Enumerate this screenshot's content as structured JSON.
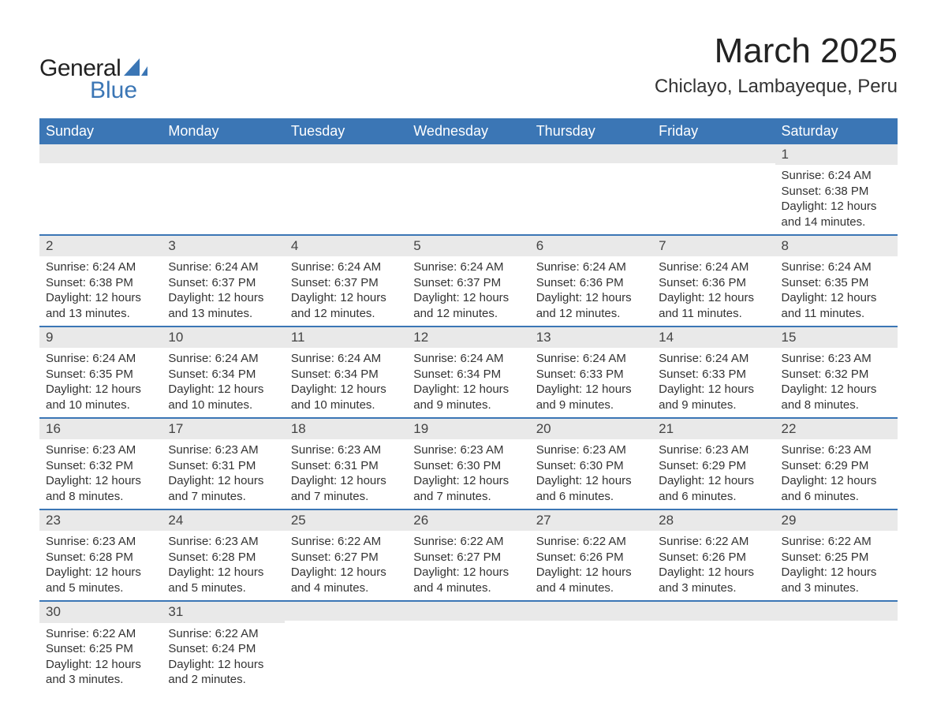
{
  "logo": {
    "text_general": "General",
    "text_blue": "Blue"
  },
  "header": {
    "title": "March 2025",
    "subtitle": "Chiclayo, Lambayeque, Peru"
  },
  "colors": {
    "header_blue": "#3b76b5",
    "divider_blue": "#3b76b5",
    "day_header_bg": "#e9e9e9",
    "text": "#333333",
    "background": "#ffffff"
  },
  "calendar": {
    "type": "table",
    "columns": [
      "Sunday",
      "Monday",
      "Tuesday",
      "Wednesday",
      "Thursday",
      "Friday",
      "Saturday"
    ],
    "weeks": [
      [
        {
          "empty": true
        },
        {
          "empty": true
        },
        {
          "empty": true
        },
        {
          "empty": true
        },
        {
          "empty": true
        },
        {
          "empty": true
        },
        {
          "day": "1",
          "sunrise": "Sunrise: 6:24 AM",
          "sunset": "Sunset: 6:38 PM",
          "daylight": "Daylight: 12 hours and 14 minutes."
        }
      ],
      [
        {
          "day": "2",
          "sunrise": "Sunrise: 6:24 AM",
          "sunset": "Sunset: 6:38 PM",
          "daylight": "Daylight: 12 hours and 13 minutes."
        },
        {
          "day": "3",
          "sunrise": "Sunrise: 6:24 AM",
          "sunset": "Sunset: 6:37 PM",
          "daylight": "Daylight: 12 hours and 13 minutes."
        },
        {
          "day": "4",
          "sunrise": "Sunrise: 6:24 AM",
          "sunset": "Sunset: 6:37 PM",
          "daylight": "Daylight: 12 hours and 12 minutes."
        },
        {
          "day": "5",
          "sunrise": "Sunrise: 6:24 AM",
          "sunset": "Sunset: 6:37 PM",
          "daylight": "Daylight: 12 hours and 12 minutes."
        },
        {
          "day": "6",
          "sunrise": "Sunrise: 6:24 AM",
          "sunset": "Sunset: 6:36 PM",
          "daylight": "Daylight: 12 hours and 12 minutes."
        },
        {
          "day": "7",
          "sunrise": "Sunrise: 6:24 AM",
          "sunset": "Sunset: 6:36 PM",
          "daylight": "Daylight: 12 hours and 11 minutes."
        },
        {
          "day": "8",
          "sunrise": "Sunrise: 6:24 AM",
          "sunset": "Sunset: 6:35 PM",
          "daylight": "Daylight: 12 hours and 11 minutes."
        }
      ],
      [
        {
          "day": "9",
          "sunrise": "Sunrise: 6:24 AM",
          "sunset": "Sunset: 6:35 PM",
          "daylight": "Daylight: 12 hours and 10 minutes."
        },
        {
          "day": "10",
          "sunrise": "Sunrise: 6:24 AM",
          "sunset": "Sunset: 6:34 PM",
          "daylight": "Daylight: 12 hours and 10 minutes."
        },
        {
          "day": "11",
          "sunrise": "Sunrise: 6:24 AM",
          "sunset": "Sunset: 6:34 PM",
          "daylight": "Daylight: 12 hours and 10 minutes."
        },
        {
          "day": "12",
          "sunrise": "Sunrise: 6:24 AM",
          "sunset": "Sunset: 6:34 PM",
          "daylight": "Daylight: 12 hours and 9 minutes."
        },
        {
          "day": "13",
          "sunrise": "Sunrise: 6:24 AM",
          "sunset": "Sunset: 6:33 PM",
          "daylight": "Daylight: 12 hours and 9 minutes."
        },
        {
          "day": "14",
          "sunrise": "Sunrise: 6:24 AM",
          "sunset": "Sunset: 6:33 PM",
          "daylight": "Daylight: 12 hours and 9 minutes."
        },
        {
          "day": "15",
          "sunrise": "Sunrise: 6:23 AM",
          "sunset": "Sunset: 6:32 PM",
          "daylight": "Daylight: 12 hours and 8 minutes."
        }
      ],
      [
        {
          "day": "16",
          "sunrise": "Sunrise: 6:23 AM",
          "sunset": "Sunset: 6:32 PM",
          "daylight": "Daylight: 12 hours and 8 minutes."
        },
        {
          "day": "17",
          "sunrise": "Sunrise: 6:23 AM",
          "sunset": "Sunset: 6:31 PM",
          "daylight": "Daylight: 12 hours and 7 minutes."
        },
        {
          "day": "18",
          "sunrise": "Sunrise: 6:23 AM",
          "sunset": "Sunset: 6:31 PM",
          "daylight": "Daylight: 12 hours and 7 minutes."
        },
        {
          "day": "19",
          "sunrise": "Sunrise: 6:23 AM",
          "sunset": "Sunset: 6:30 PM",
          "daylight": "Daylight: 12 hours and 7 minutes."
        },
        {
          "day": "20",
          "sunrise": "Sunrise: 6:23 AM",
          "sunset": "Sunset: 6:30 PM",
          "daylight": "Daylight: 12 hours and 6 minutes."
        },
        {
          "day": "21",
          "sunrise": "Sunrise: 6:23 AM",
          "sunset": "Sunset: 6:29 PM",
          "daylight": "Daylight: 12 hours and 6 minutes."
        },
        {
          "day": "22",
          "sunrise": "Sunrise: 6:23 AM",
          "sunset": "Sunset: 6:29 PM",
          "daylight": "Daylight: 12 hours and 6 minutes."
        }
      ],
      [
        {
          "day": "23",
          "sunrise": "Sunrise: 6:23 AM",
          "sunset": "Sunset: 6:28 PM",
          "daylight": "Daylight: 12 hours and 5 minutes."
        },
        {
          "day": "24",
          "sunrise": "Sunrise: 6:23 AM",
          "sunset": "Sunset: 6:28 PM",
          "daylight": "Daylight: 12 hours and 5 minutes."
        },
        {
          "day": "25",
          "sunrise": "Sunrise: 6:22 AM",
          "sunset": "Sunset: 6:27 PM",
          "daylight": "Daylight: 12 hours and 4 minutes."
        },
        {
          "day": "26",
          "sunrise": "Sunrise: 6:22 AM",
          "sunset": "Sunset: 6:27 PM",
          "daylight": "Daylight: 12 hours and 4 minutes."
        },
        {
          "day": "27",
          "sunrise": "Sunrise: 6:22 AM",
          "sunset": "Sunset: 6:26 PM",
          "daylight": "Daylight: 12 hours and 4 minutes."
        },
        {
          "day": "28",
          "sunrise": "Sunrise: 6:22 AM",
          "sunset": "Sunset: 6:26 PM",
          "daylight": "Daylight: 12 hours and 3 minutes."
        },
        {
          "day": "29",
          "sunrise": "Sunrise: 6:22 AM",
          "sunset": "Sunset: 6:25 PM",
          "daylight": "Daylight: 12 hours and 3 minutes."
        }
      ],
      [
        {
          "day": "30",
          "sunrise": "Sunrise: 6:22 AM",
          "sunset": "Sunset: 6:25 PM",
          "daylight": "Daylight: 12 hours and 3 minutes."
        },
        {
          "day": "31",
          "sunrise": "Sunrise: 6:22 AM",
          "sunset": "Sunset: 6:24 PM",
          "daylight": "Daylight: 12 hours and 2 minutes."
        },
        {
          "empty": true
        },
        {
          "empty": true
        },
        {
          "empty": true
        },
        {
          "empty": true
        },
        {
          "empty": true
        }
      ]
    ]
  }
}
